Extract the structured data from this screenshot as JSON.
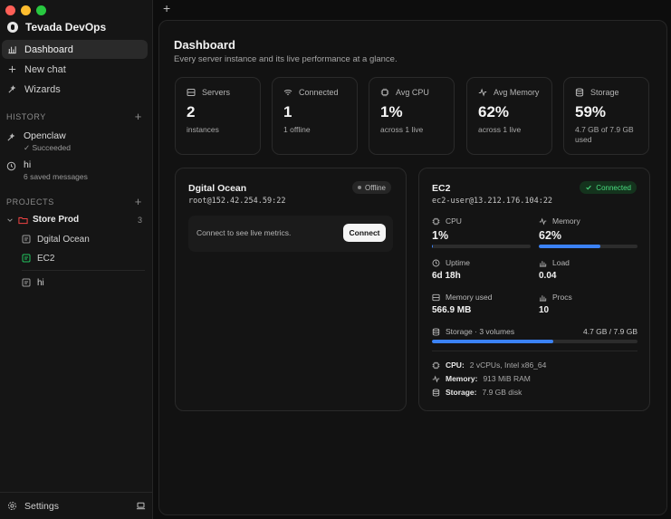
{
  "app": {
    "name": "Tevada DevOps"
  },
  "nav": {
    "dashboard": "Dashboard",
    "new_chat": "New chat",
    "wizards": "Wizards"
  },
  "history": {
    "heading": "HISTORY",
    "items": [
      {
        "title": "Openclaw",
        "meta": "✓ Succeeded"
      },
      {
        "title": "hi",
        "meta": "6 saved messages"
      }
    ]
  },
  "projects": {
    "heading": "PROJECTS",
    "root": {
      "name": "Store Prod",
      "count": "3"
    },
    "children": [
      "Dgital Ocean",
      "EC2",
      "hi"
    ]
  },
  "settings": {
    "label": "Settings"
  },
  "tabs": {
    "new_tab": "+"
  },
  "dashboard": {
    "title": "Dashboard",
    "subtitle": "Every server instance and its live performance at a glance.",
    "stats": [
      {
        "label": "Servers",
        "value": "2",
        "sub": "instances"
      },
      {
        "label": "Connected",
        "value": "1",
        "sub": "1 offline"
      },
      {
        "label": "Avg CPU",
        "value": "1%",
        "sub": "across 1 live"
      },
      {
        "label": "Avg Memory",
        "value": "62%",
        "sub": "across 1 live"
      },
      {
        "label": "Storage",
        "value": "59%",
        "sub": "4.7 GB of 7.9 GB used"
      }
    ]
  },
  "server_do": {
    "name": "Dgital Ocean",
    "host": "root@152.42.254.59:22",
    "status": "Offline",
    "message": "Connect to see live metrics.",
    "connect_label": "Connect"
  },
  "server_ec2": {
    "name": "EC2",
    "host": "ec2-user@13.212.176.104:22",
    "status": "Connected",
    "cpu": {
      "label": "CPU",
      "value": "1%",
      "fraction": 0.01
    },
    "memory": {
      "label": "Memory",
      "value": "62%",
      "fraction": 0.62
    },
    "uptime": {
      "label": "Uptime",
      "value": "6d 18h"
    },
    "load": {
      "label": "Load",
      "value": "0.04"
    },
    "memory_used": {
      "label": "Memory used",
      "value": "566.9 MB"
    },
    "procs": {
      "label": "Procs",
      "value": "10"
    },
    "storage": {
      "label": "Storage · 3 volumes",
      "value": "4.7 GB / 7.9 GB",
      "fraction": 0.59
    },
    "specs": [
      {
        "key": "CPU:",
        "value": "2 vCPUs, Intel x86_64"
      },
      {
        "key": "Memory:",
        "value": "913 MiB RAM"
      },
      {
        "key": "Storage:",
        "value": "7.9 GB disk"
      }
    ]
  },
  "colors": {
    "accent": "#3b82f6",
    "connected": "#4ade80",
    "project_folder": "#ef4444",
    "project_doc_active": "#22c55e"
  }
}
